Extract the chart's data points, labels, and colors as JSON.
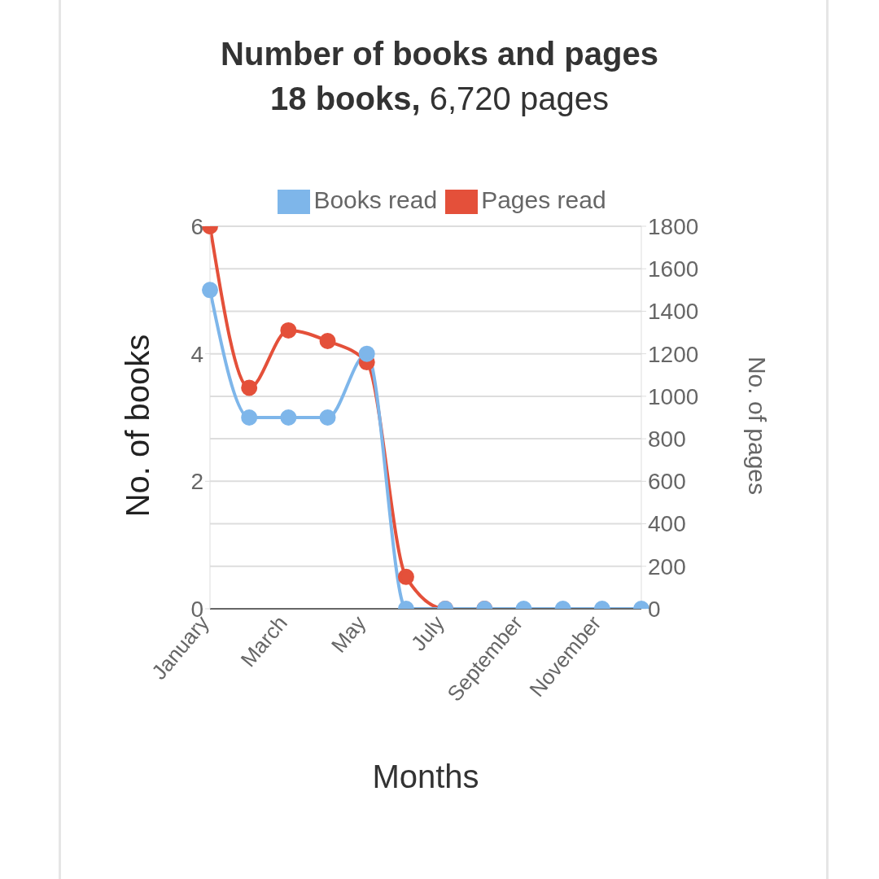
{
  "chart_data": {
    "type": "line",
    "title": "Number of books and pages",
    "subtitle": "18 books, 6,720 pages",
    "xlabel": "Months",
    "ylabel": "No. of books",
    "y2label": "No. of pages",
    "categories": [
      "January",
      null,
      "March",
      null,
      "May",
      null,
      "July",
      null,
      "September",
      null,
      "November",
      null
    ],
    "series": [
      {
        "name": "Books read",
        "color": "#7eb6ea",
        "values": [
          5,
          3,
          3,
          3,
          4,
          0,
          0,
          0,
          0,
          0,
          0,
          0
        ]
      },
      {
        "name": "Pages read",
        "color": "#e4503a",
        "axis": "y2",
        "values": [
          1800,
          1040,
          1310,
          1260,
          1160,
          150,
          0,
          0,
          null,
          null,
          null,
          null
        ]
      }
    ],
    "ylim": [
      0,
      6
    ],
    "yticks": [
      0,
      2,
      4,
      6
    ],
    "y2lim": [
      0,
      1800
    ],
    "y2ticks": [
      0,
      200,
      400,
      600,
      800,
      1000,
      1200,
      1400,
      1600,
      1800
    ],
    "grid": "y",
    "legend": "top",
    "marker": "circle",
    "line_style": "solid"
  }
}
